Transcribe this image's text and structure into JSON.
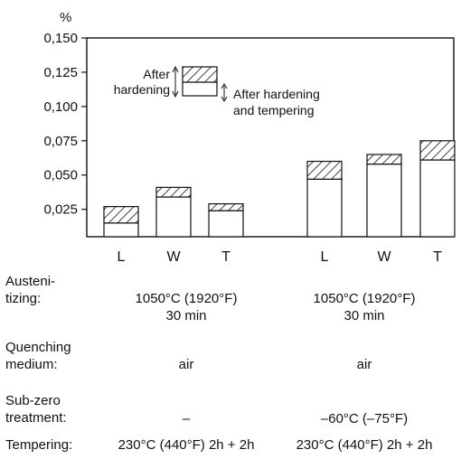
{
  "chart_data": {
    "type": "bar",
    "unit_label": "%",
    "ylim": [
      0.005,
      0.15
    ],
    "yticks": [
      "0,150",
      "0,125",
      "0,100",
      "0,075",
      "0,050",
      "0,025"
    ],
    "ytick_values": [
      0.15,
      0.125,
      0.1,
      0.075,
      0.05,
      0.025
    ],
    "categories": [
      "L",
      "W",
      "T",
      "L",
      "W",
      "T"
    ],
    "series": [
      {
        "name": "After hardening and tempering",
        "values": [
          0.015,
          0.034,
          0.024,
          0.047,
          0.058,
          0.061
        ]
      },
      {
        "name": "After hardening",
        "values": [
          0.027,
          0.041,
          0.029,
          0.06,
          0.065,
          0.075
        ]
      }
    ],
    "legend": {
      "hardening": "After\nhardening",
      "tempering": "After hardening\nand tempering"
    },
    "grid": false
  },
  "conditions": {
    "austenitizing": {
      "label": "Austeni-\ntizing:",
      "group1": "1050°C (1920°F)\n30 min",
      "group2": "1050°C (1920°F)\n30 min"
    },
    "quenching": {
      "label": "Quenching\nmedium:",
      "group1": "air",
      "group2": "air"
    },
    "subzero": {
      "label": "Sub-zero\ntreatment:",
      "group1": "–",
      "group2": "–60°C (–75°F)"
    },
    "tempering": {
      "label": "Tempering:",
      "group1": "230°C (440°F) 2h + 2h",
      "group2": "230°C (440°F) 2h + 2h"
    }
  }
}
